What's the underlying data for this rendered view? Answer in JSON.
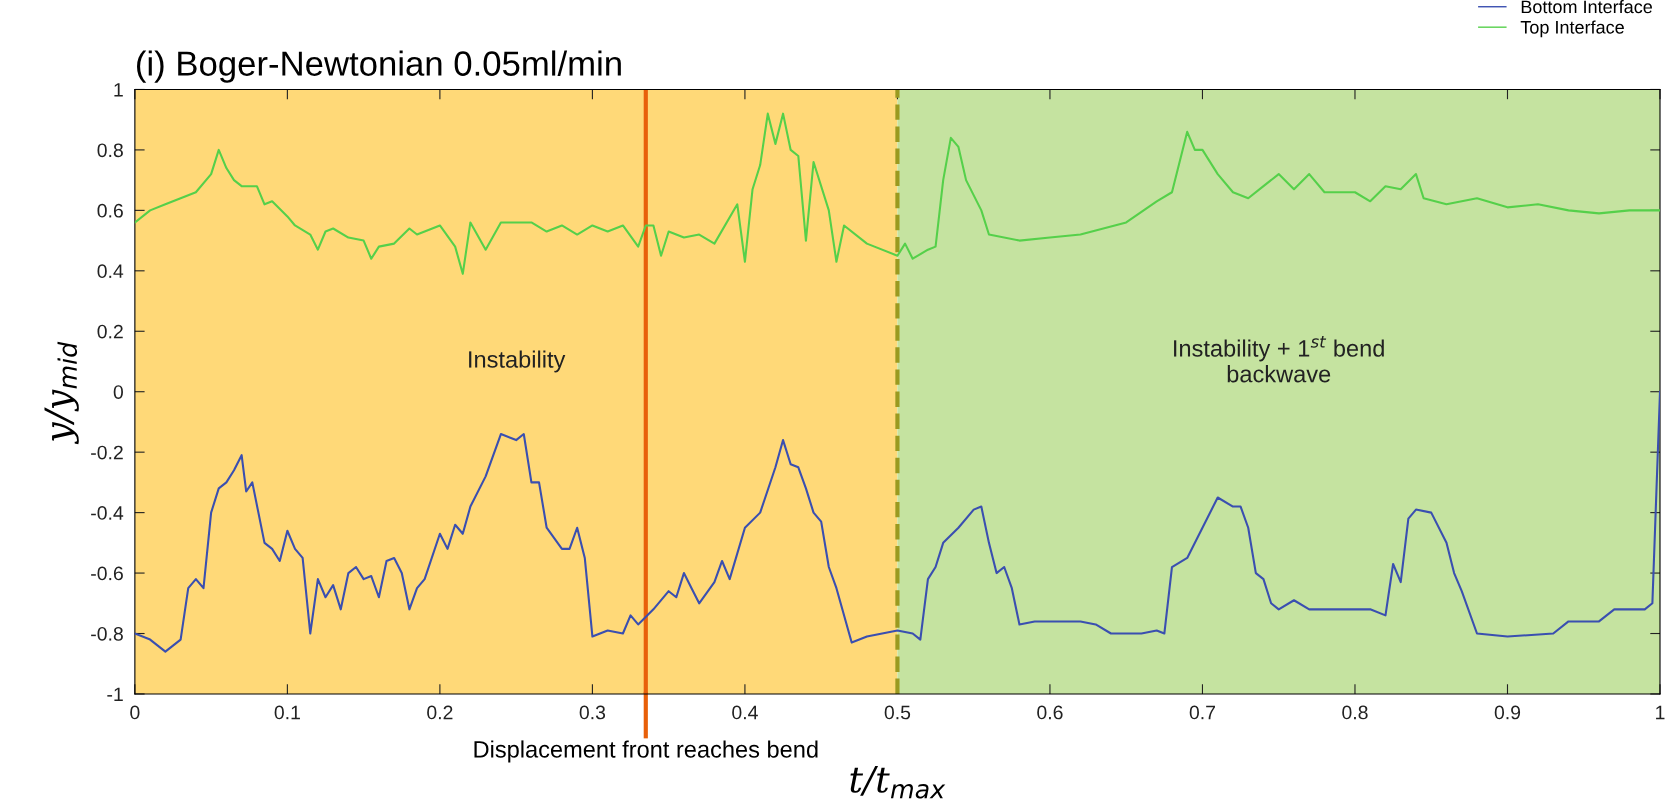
{
  "chart_data": {
    "type": "line",
    "title": "(i) Boger-Newtonian 0.05ml/min",
    "xlabel": "t/t$_{max}$",
    "ylabel": "y/y$_{mid}$",
    "xlim": [
      0,
      1
    ],
    "ylim": [
      -1,
      1
    ],
    "xticks": [
      0,
      0.1,
      0.2,
      0.3,
      0.4,
      0.5,
      0.6,
      0.7,
      0.8,
      0.9,
      1
    ],
    "yticks": [
      -1,
      -0.8,
      -0.6,
      -0.4,
      -0.2,
      0,
      0.2,
      0.4,
      0.6,
      0.8,
      1
    ],
    "grid": false,
    "legend": "top right",
    "line_style": "solid",
    "marker": "none",
    "series": [
      {
        "name": "Bottom Interface",
        "color": "#3a4fb0",
        "x": [
          0,
          0.01,
          0.02,
          0.03,
          0.035,
          0.04,
          0.045,
          0.05,
          0.055,
          0.06,
          0.065,
          0.07,
          0.073,
          0.077,
          0.085,
          0.09,
          0.095,
          0.1,
          0.105,
          0.11,
          0.115,
          0.12,
          0.125,
          0.13,
          0.135,
          0.14,
          0.145,
          0.15,
          0.155,
          0.16,
          0.165,
          0.17,
          0.175,
          0.18,
          0.185,
          0.19,
          0.2,
          0.205,
          0.21,
          0.215,
          0.22,
          0.23,
          0.24,
          0.25,
          0.255,
          0.26,
          0.265,
          0.27,
          0.28,
          0.285,
          0.29,
          0.295,
          0.3,
          0.31,
          0.32,
          0.325,
          0.33,
          0.34,
          0.35,
          0.355,
          0.36,
          0.365,
          0.37,
          0.38,
          0.385,
          0.39,
          0.4,
          0.41,
          0.42,
          0.425,
          0.43,
          0.435,
          0.44,
          0.445,
          0.45,
          0.455,
          0.46,
          0.47,
          0.475,
          0.48,
          0.49,
          0.5,
          0.51,
          0.515,
          0.52,
          0.525,
          0.53,
          0.54,
          0.55,
          0.555,
          0.56,
          0.565,
          0.57,
          0.575,
          0.58,
          0.59,
          0.62,
          0.63,
          0.64,
          0.66,
          0.67,
          0.675,
          0.68,
          0.69,
          0.7,
          0.71,
          0.72,
          0.725,
          0.73,
          0.735,
          0.74,
          0.745,
          0.75,
          0.76,
          0.77,
          0.8,
          0.81,
          0.82,
          0.825,
          0.83,
          0.835,
          0.84,
          0.85,
          0.86,
          0.865,
          0.87,
          0.88,
          0.9,
          0.93,
          0.94,
          0.96,
          0.97,
          0.99,
          0.995,
          1.0
        ],
        "values": [
          -0.8,
          -0.82,
          -0.86,
          -0.82,
          -0.65,
          -0.62,
          -0.65,
          -0.4,
          -0.32,
          -0.3,
          -0.26,
          -0.21,
          -0.33,
          -0.3,
          -0.5,
          -0.52,
          -0.56,
          -0.46,
          -0.52,
          -0.55,
          -0.8,
          -0.62,
          -0.68,
          -0.64,
          -0.72,
          -0.6,
          -0.58,
          -0.62,
          -0.61,
          -0.68,
          -0.56,
          -0.55,
          -0.6,
          -0.72,
          -0.65,
          -0.62,
          -0.47,
          -0.52,
          -0.44,
          -0.47,
          -0.38,
          -0.28,
          -0.14,
          -0.16,
          -0.14,
          -0.3,
          -0.3,
          -0.45,
          -0.52,
          -0.52,
          -0.45,
          -0.55,
          -0.81,
          -0.79,
          -0.8,
          -0.74,
          -0.77,
          -0.72,
          -0.66,
          -0.68,
          -0.6,
          -0.65,
          -0.7,
          -0.63,
          -0.56,
          -0.62,
          -0.45,
          -0.4,
          -0.25,
          -0.16,
          -0.24,
          -0.25,
          -0.32,
          -0.4,
          -0.43,
          -0.58,
          -0.65,
          -0.83,
          -0.82,
          -0.81,
          -0.8,
          -0.79,
          -0.8,
          -0.82,
          -0.62,
          -0.58,
          -0.5,
          -0.45,
          -0.39,
          -0.38,
          -0.5,
          -0.6,
          -0.58,
          -0.65,
          -0.77,
          -0.76,
          -0.76,
          -0.77,
          -0.8,
          -0.8,
          -0.79,
          -0.8,
          -0.58,
          -0.55,
          -0.45,
          -0.35,
          -0.38,
          -0.38,
          -0.45,
          -0.6,
          -0.62,
          -0.7,
          -0.72,
          -0.69,
          -0.72,
          -0.72,
          -0.72,
          -0.74,
          -0.57,
          -0.63,
          -0.42,
          -0.39,
          -0.4,
          -0.5,
          -0.6,
          -0.66,
          -0.8,
          -0.81,
          -0.8,
          -0.76,
          -0.76,
          -0.72,
          -0.72,
          -0.7,
          0.0
        ]
      },
      {
        "name": "Top Interface",
        "color": "#55d04a",
        "x": [
          0,
          0.01,
          0.02,
          0.03,
          0.04,
          0.05,
          0.055,
          0.06,
          0.065,
          0.07,
          0.08,
          0.085,
          0.09,
          0.1,
          0.105,
          0.115,
          0.12,
          0.125,
          0.13,
          0.14,
          0.15,
          0.155,
          0.16,
          0.17,
          0.18,
          0.185,
          0.2,
          0.21,
          0.215,
          0.22,
          0.23,
          0.24,
          0.26,
          0.27,
          0.28,
          0.29,
          0.3,
          0.31,
          0.32,
          0.33,
          0.335,
          0.34,
          0.345,
          0.35,
          0.36,
          0.37,
          0.38,
          0.395,
          0.4,
          0.405,
          0.41,
          0.415,
          0.42,
          0.425,
          0.43,
          0.435,
          0.44,
          0.445,
          0.455,
          0.46,
          0.465,
          0.48,
          0.5,
          0.505,
          0.51,
          0.52,
          0.525,
          0.53,
          0.535,
          0.54,
          0.545,
          0.555,
          0.56,
          0.58,
          0.6,
          0.62,
          0.65,
          0.67,
          0.68,
          0.69,
          0.695,
          0.7,
          0.71,
          0.72,
          0.73,
          0.74,
          0.75,
          0.76,
          0.77,
          0.78,
          0.79,
          0.8,
          0.81,
          0.82,
          0.83,
          0.84,
          0.845,
          0.86,
          0.88,
          0.9,
          0.92,
          0.94,
          0.96,
          0.98,
          1.0
        ],
        "values": [
          0.56,
          0.6,
          0.62,
          0.64,
          0.66,
          0.72,
          0.8,
          0.74,
          0.7,
          0.68,
          0.68,
          0.62,
          0.63,
          0.58,
          0.55,
          0.52,
          0.47,
          0.53,
          0.54,
          0.51,
          0.5,
          0.44,
          0.48,
          0.49,
          0.54,
          0.52,
          0.55,
          0.48,
          0.39,
          0.56,
          0.47,
          0.56,
          0.56,
          0.53,
          0.55,
          0.52,
          0.55,
          0.53,
          0.55,
          0.48,
          0.55,
          0.55,
          0.45,
          0.53,
          0.51,
          0.52,
          0.49,
          0.62,
          0.43,
          0.67,
          0.75,
          0.92,
          0.82,
          0.92,
          0.8,
          0.78,
          0.5,
          0.76,
          0.6,
          0.43,
          0.55,
          0.49,
          0.45,
          0.49,
          0.44,
          0.47,
          0.48,
          0.7,
          0.84,
          0.81,
          0.7,
          0.6,
          0.52,
          0.5,
          0.51,
          0.52,
          0.56,
          0.63,
          0.66,
          0.86,
          0.8,
          0.8,
          0.72,
          0.66,
          0.64,
          0.68,
          0.72,
          0.67,
          0.72,
          0.66,
          0.66,
          0.66,
          0.63,
          0.68,
          0.67,
          0.72,
          0.64,
          0.62,
          0.64,
          0.61,
          0.62,
          0.6,
          0.59,
          0.6,
          0.6
        ]
      }
    ],
    "bands": [
      {
        "axis": "x",
        "from": 0,
        "to": 0.5,
        "label": "Instability",
        "color": "#ffd978"
      },
      {
        "axis": "x",
        "from": 0.5,
        "to": 1,
        "label": "Instability + 1$^{st}$ bend\nbackwave",
        "color": "#c5e3a0"
      }
    ],
    "ref_lines": [
      {
        "axis": "x",
        "value": 0.335,
        "label": "Displacement front reaches bend",
        "color": "#e8600a",
        "line_style": "solid"
      },
      {
        "axis": "x",
        "value": 0.5,
        "color": "#9a9a20",
        "line_style": "dashed"
      }
    ]
  }
}
